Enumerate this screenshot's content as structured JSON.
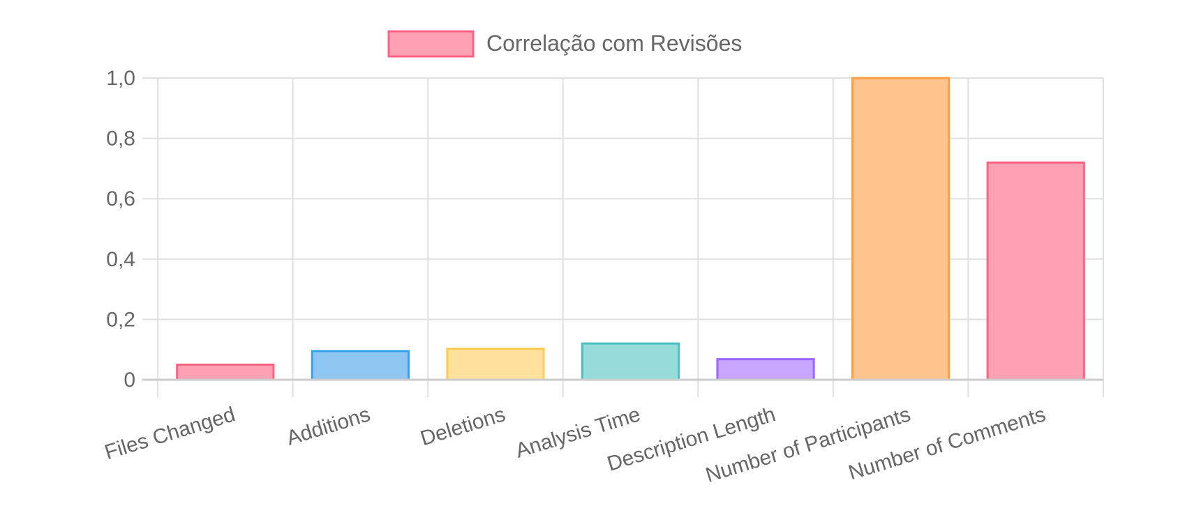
{
  "chart_data": {
    "type": "bar",
    "categories": [
      "Files Changed",
      "Additions",
      "Deletions",
      "Analysis Time",
      "Description Length",
      "Number of Participants",
      "Number of Comments"
    ],
    "series": [
      {
        "name": "Correlação com Revisões",
        "values": [
          0.05,
          0.095,
          0.103,
          0.12,
          0.068,
          1.0,
          0.72
        ]
      }
    ],
    "ylim": [
      0,
      1.0
    ],
    "y_ticks": [
      "0",
      "0,2",
      "0,4",
      "0,6",
      "0,8",
      "1,0"
    ],
    "grid": true,
    "legend_position": "top",
    "colors": {
      "fill": [
        "#ffa0b4",
        "#8ec6f1",
        "#ffe09d",
        "#97dbda",
        "#c8a6ff",
        "#ffc48e",
        "#ffa0b4"
      ],
      "stroke": [
        "#ff6384",
        "#36a2eb",
        "#ffcd56",
        "#4bc0c0",
        "#9966ff",
        "#ff9f40",
        "#ff6384"
      ],
      "legend_fill": "#ffa0b4",
      "legend_stroke": "#ff6384",
      "grid": "#e0e0e0",
      "text": "#666666"
    }
  }
}
